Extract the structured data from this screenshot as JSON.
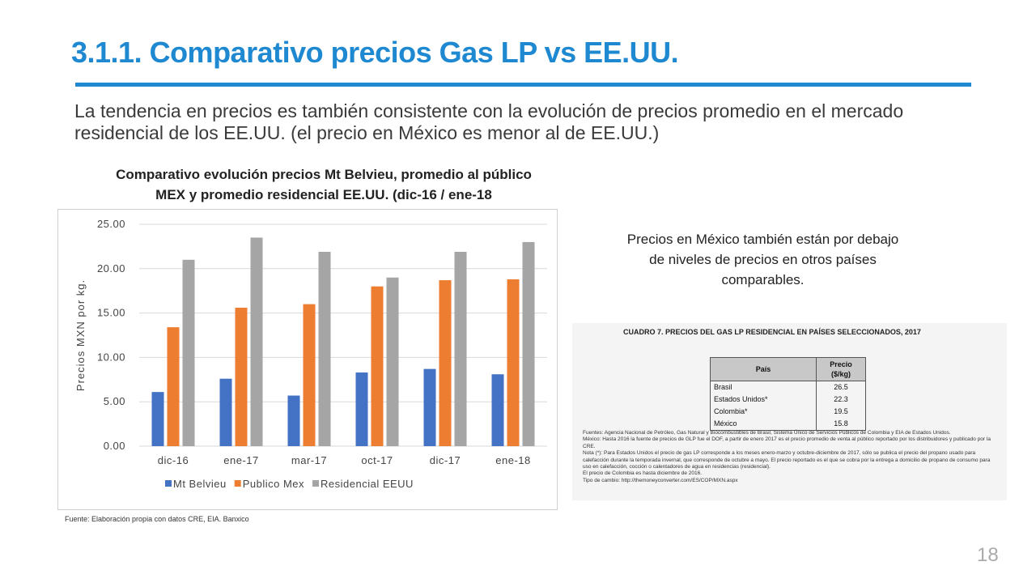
{
  "slide": {
    "title": "3.1.1. Comparativo precios Gas LP vs EE.UU.",
    "intro": "La tendencia en precios es también consistente con la evolución de precios promedio en el mercado residencial de los EE.UU. (el precio en México es menor al de EE.UU.)",
    "chart_title_line1": "Comparativo evolución precios Mt Belvieu, promedio al público",
    "chart_title_line2": "MEX y promedio residencial EE.UU.  (dic-16 / ene-18",
    "source": "Fuente: Elaboración propia con datos CRE, EIA. Banxico",
    "side_note": "Precios en México también están por debajo de niveles de precios en otros países comparables.",
    "page_number": "18",
    "accent_color": "#1e88d0"
  },
  "cuadro": {
    "title": "CUADRO 7. PRECIOS DEL GAS LP RESIDENCIAL EN PAÍSES SELECCIONADOS, 2017",
    "col_country": "País",
    "col_price_line1": "Precio",
    "col_price_line2": "($/kg)",
    "rows": [
      {
        "country": "Brasil",
        "price": "26.5"
      },
      {
        "country": "Estados Unidos*",
        "price": "22.3"
      },
      {
        "country": "Colombia*",
        "price": "19.5"
      },
      {
        "country": "México",
        "price": "15.8"
      }
    ],
    "notes": [
      "Fuentes: Agencia Nacional de Petróleo, Gas Natural y Biocombustibles de Brasil, Sistema Único de Servicios Públicos de Colombia y EIA de Estados Unidos.",
      "México: Hasta 2016 la fuente de precios de GLP fue el DOF, a partir de enero 2017 es el precio promedio de venta al público reportado por los distribuidores y publicado por la CRE.",
      "Nota (*): Para Estados Unidos el precio de gas LP corresponde a los meses enero-marzo y octubre-diciembre de 2017, sólo se publica el precio del propano usado para calefacción durante la temporada invernal, que corresponde de octubre a mayo. El precio reportado es el que se cobra por la entrega a domicilio de propano de consumo para uso en calefacción, cocción o calentadores de agua en residencias (residencial).",
      "El precio de Colombia es hasta diciembre de 2016.",
      "Tipo de cambio: http://themoneyconverter.com/ES/COP/MXN.aspx"
    ]
  },
  "chart_data": {
    "type": "bar",
    "categories": [
      "dic-16",
      "ene-17",
      "mar-17",
      "oct-17",
      "dic-17",
      "ene-18"
    ],
    "series": [
      {
        "name": "Mt Belvieu",
        "color": "#4472c4",
        "values": [
          6.1,
          7.6,
          5.7,
          8.3,
          8.7,
          8.1
        ]
      },
      {
        "name": "Publico Mex",
        "color": "#ed7d31",
        "values": [
          13.4,
          15.6,
          16.0,
          18.0,
          18.7,
          18.8
        ]
      },
      {
        "name": "Residencial EEUU",
        "color": "#a5a5a5",
        "values": [
          21.0,
          23.5,
          21.9,
          19.0,
          21.9,
          23.0
        ]
      }
    ],
    "ylabel": "Precios MXN por kg.",
    "ylim": [
      0,
      25
    ],
    "yticks": [
      "0.00",
      "5.00",
      "10.00",
      "15.00",
      "20.00",
      "25.00"
    ],
    "grid": true,
    "legend_position": "bottom"
  }
}
